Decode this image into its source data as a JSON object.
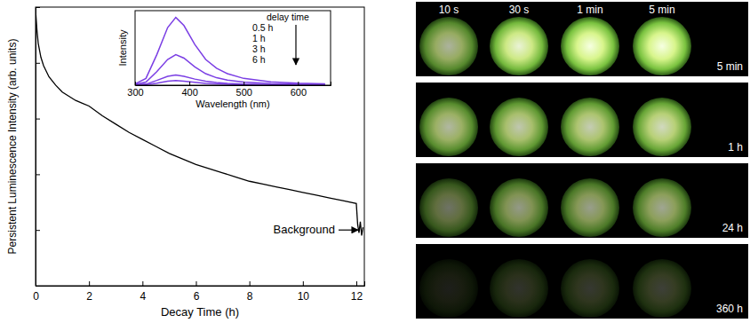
{
  "chart_data": [
    {
      "type": "line",
      "x_label": "Decay Time (h)",
      "y_label": "Persistent Luminescence Intensity (arb. units)",
      "x": [
        0,
        0.05,
        0.1,
        0.2,
        0.3,
        0.5,
        0.75,
        1,
        1.25,
        1.5,
        1.75,
        2,
        2.5,
        3,
        3.5,
        4,
        4.5,
        5,
        5.5,
        6,
        6.5,
        7,
        7.5,
        8,
        8.5,
        9,
        9.5,
        10,
        10.5,
        11,
        11.5,
        12,
        12.05,
        12.1,
        12.15,
        12.2,
        12.25
      ],
      "values": [
        99,
        92,
        87,
        82,
        79,
        75,
        72,
        69.5,
        68,
        66.5,
        65.5,
        64.5,
        61,
        58,
        55,
        52.5,
        50,
        47.5,
        45.5,
        43.5,
        42,
        40.5,
        39,
        37.5,
        36.5,
        35.5,
        34.5,
        33.5,
        32.5,
        31.5,
        30.5,
        29.5,
        22,
        19,
        23,
        18,
        21
      ],
      "color": "#000000",
      "xlim": [
        0,
        12.3
      ],
      "ylim": [
        0,
        100
      ],
      "xticks": [
        0,
        2,
        4,
        6,
        8,
        10,
        12
      ],
      "yticks": [
        0,
        20,
        40,
        60,
        80,
        100
      ],
      "tick_labels": "x",
      "annotations": [
        {
          "text": "Background",
          "x": 12.2,
          "y": 20
        }
      ]
    },
    {
      "type": "line",
      "x_label": "Wavelength (nm)",
      "y_label": "Intensity",
      "legend_title": "delay time",
      "legend": "top-right",
      "x": [
        300,
        320,
        340,
        360,
        375,
        390,
        410,
        430,
        450,
        470,
        500,
        550,
        600,
        650
      ],
      "series": [
        {
          "name": "0.5 h",
          "color": "#7b3fe4",
          "values": [
            2,
            10,
            45,
            85,
            100,
            88,
            60,
            38,
            25,
            17,
            10,
            5,
            3,
            2
          ]
        },
        {
          "name": "1 h",
          "color": "#7b3fe4",
          "values": [
            1,
            4.5,
            20,
            38,
            45,
            40,
            27,
            17,
            11,
            7.5,
            4.5,
            2.3,
            1.4,
            1
          ]
        },
        {
          "name": "3 h",
          "color": "#7b3fe4",
          "values": [
            0.5,
            1.5,
            7,
            13,
            15,
            13,
            9,
            6,
            4,
            2.6,
            1.5,
            0.8,
            0.5,
            0.3
          ]
        },
        {
          "name": "6 h",
          "color": "#7b3fe4",
          "values": [
            0.3,
            0.7,
            3,
            6,
            7,
            6,
            4.2,
            2.7,
            1.8,
            1.2,
            0.7,
            0.4,
            0.3,
            0.2
          ]
        }
      ],
      "xlim": [
        300,
        660
      ],
      "ylim": [
        0,
        110
      ],
      "xticks": [
        300,
        400,
        500,
        600
      ],
      "tick_labels": "x"
    }
  ],
  "photo_panel": {
    "columns": [
      "10 s",
      "30 s",
      "1 min",
      "5 min"
    ],
    "rows": [
      "5 min",
      "1 h",
      "24 h",
      "360 h"
    ]
  }
}
